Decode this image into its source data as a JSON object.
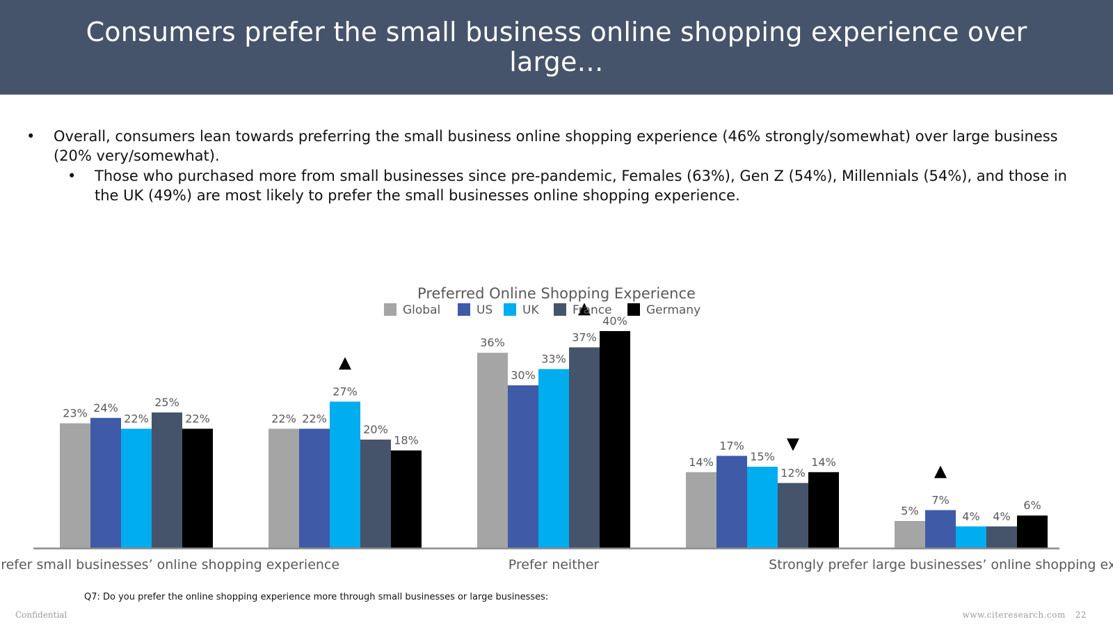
{
  "header": {
    "title": "Consumers prefer the small business online shopping experience over large…"
  },
  "bullets": [
    {
      "text": "Overall, consumers lean towards preferring the small business online shopping experience (46% strongly/somewhat) over large business (20% very/somewhat)."
    },
    {
      "text": "Those who purchased more from small businesses since pre-pandemic, Females (63%), Gen Z (54%), Millennials (54%), and those in the UK (49%) are most likely to prefer the small businesses online shopping experience."
    }
  ],
  "chart_data": {
    "type": "bar",
    "title": "Preferred Online Shopping Experience",
    "categories": [
      "Strongly prefer small businesses’ online shopping experience",
      "",
      "Prefer neither",
      "",
      "Strongly prefer large businesses’ online shopping experience"
    ],
    "series": [
      {
        "name": "Global",
        "color": "#a5a5a5",
        "values": [
          23,
          22,
          36,
          14,
          5
        ]
      },
      {
        "name": "US",
        "color": "#3f5aa7",
        "values": [
          24,
          22,
          30,
          17,
          7
        ]
      },
      {
        "name": "UK",
        "color": "#00adef",
        "values": [
          22,
          27,
          33,
          15,
          4
        ]
      },
      {
        "name": "France",
        "color": "#46546b",
        "values": [
          25,
          20,
          37,
          12,
          4
        ]
      },
      {
        "name": "Germany",
        "color": "#000000",
        "values": [
          22,
          18,
          40,
          14,
          6
        ]
      }
    ],
    "significance_markers": [
      {
        "category_index": 1,
        "series": "UK",
        "direction": "up"
      },
      {
        "category_index": 2,
        "series": "France",
        "direction": "up"
      },
      {
        "category_index": 3,
        "series": "France",
        "direction": "down"
      },
      {
        "category_index": 4,
        "series": "US",
        "direction": "up"
      }
    ],
    "legend_position": "top",
    "ylim": [
      0,
      40
    ],
    "grid": false,
    "label_color": "#595959"
  },
  "footer": {
    "question": "Q7: Do you prefer the online shopping experience more through small businesses or large businesses:",
    "confidential": "Confidential",
    "website": "www.citeresearch.com",
    "page_number": "22"
  }
}
